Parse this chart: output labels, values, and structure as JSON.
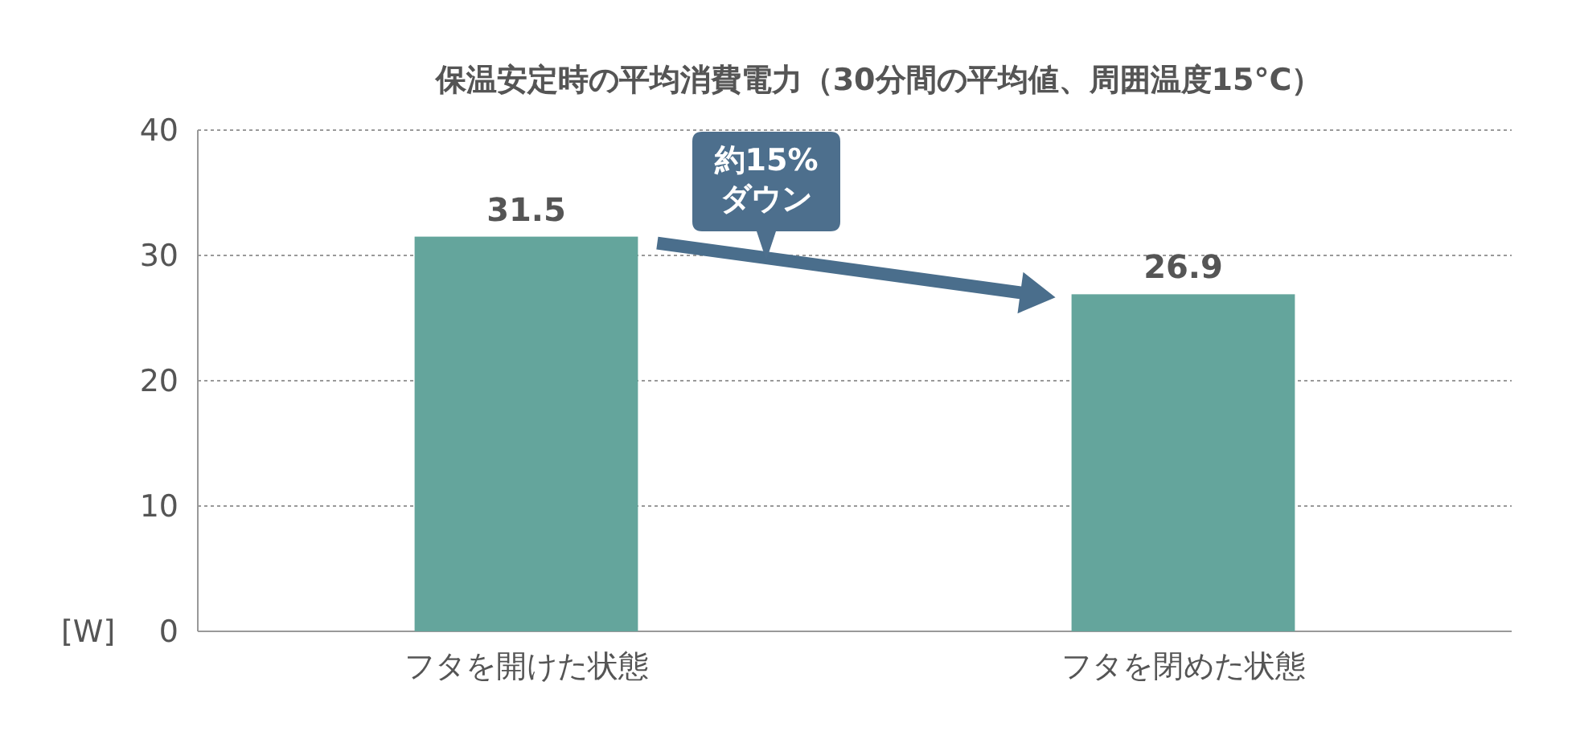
{
  "chart_data": {
    "type": "bar",
    "title": "保温安定時の平均消費電力（30分間の平均値、周囲温度15°C）",
    "categories": [
      "フタを開けた状態",
      "フタを閉めた状態"
    ],
    "values": [
      31.5,
      26.9
    ],
    "color": "#64a59c",
    "ylabel": "[W]",
    "ylim": [
      0,
      40
    ],
    "yticks": [
      0,
      10,
      20,
      30,
      40
    ],
    "grid": "y",
    "data_labels": true,
    "annotations": [
      "約15%\nダウン"
    ]
  }
}
